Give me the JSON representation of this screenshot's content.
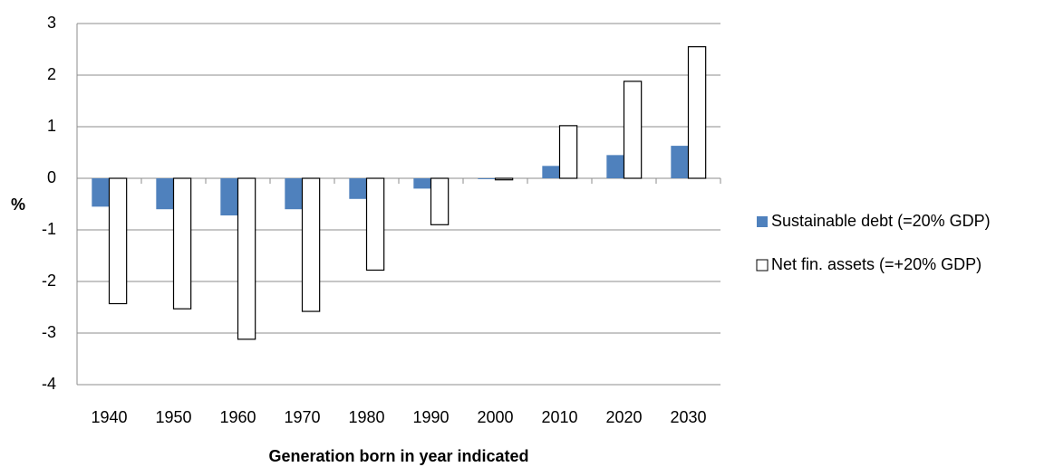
{
  "chart_data": {
    "type": "bar",
    "x_label": "Generation born in year indicated",
    "y_label": "%",
    "categories": [
      "1940",
      "1950",
      "1960",
      "1970",
      "1980",
      "1990",
      "2000",
      "2010",
      "2020",
      "2030"
    ],
    "series": [
      {
        "name": "Sustainable debt (=20% GDP)",
        "color": "#4f81bd",
        "values": [
          -0.55,
          -0.6,
          -0.72,
          -0.6,
          -0.4,
          -0.2,
          0,
          0.24,
          0.45,
          0.63
        ]
      },
      {
        "name": "Net fin. assets (=+20% GDP)",
        "color": "#ffffff",
        "values": [
          -2.43,
          -2.53,
          -3.12,
          -2.58,
          -1.78,
          -0.9,
          -0.03,
          1.02,
          1.88,
          2.55
        ]
      }
    ],
    "ylim": [
      -4,
      3
    ],
    "yticks": [
      -4,
      -3,
      -2,
      -1,
      0,
      1,
      2,
      3
    ],
    "grid": true,
    "legend": "right"
  }
}
